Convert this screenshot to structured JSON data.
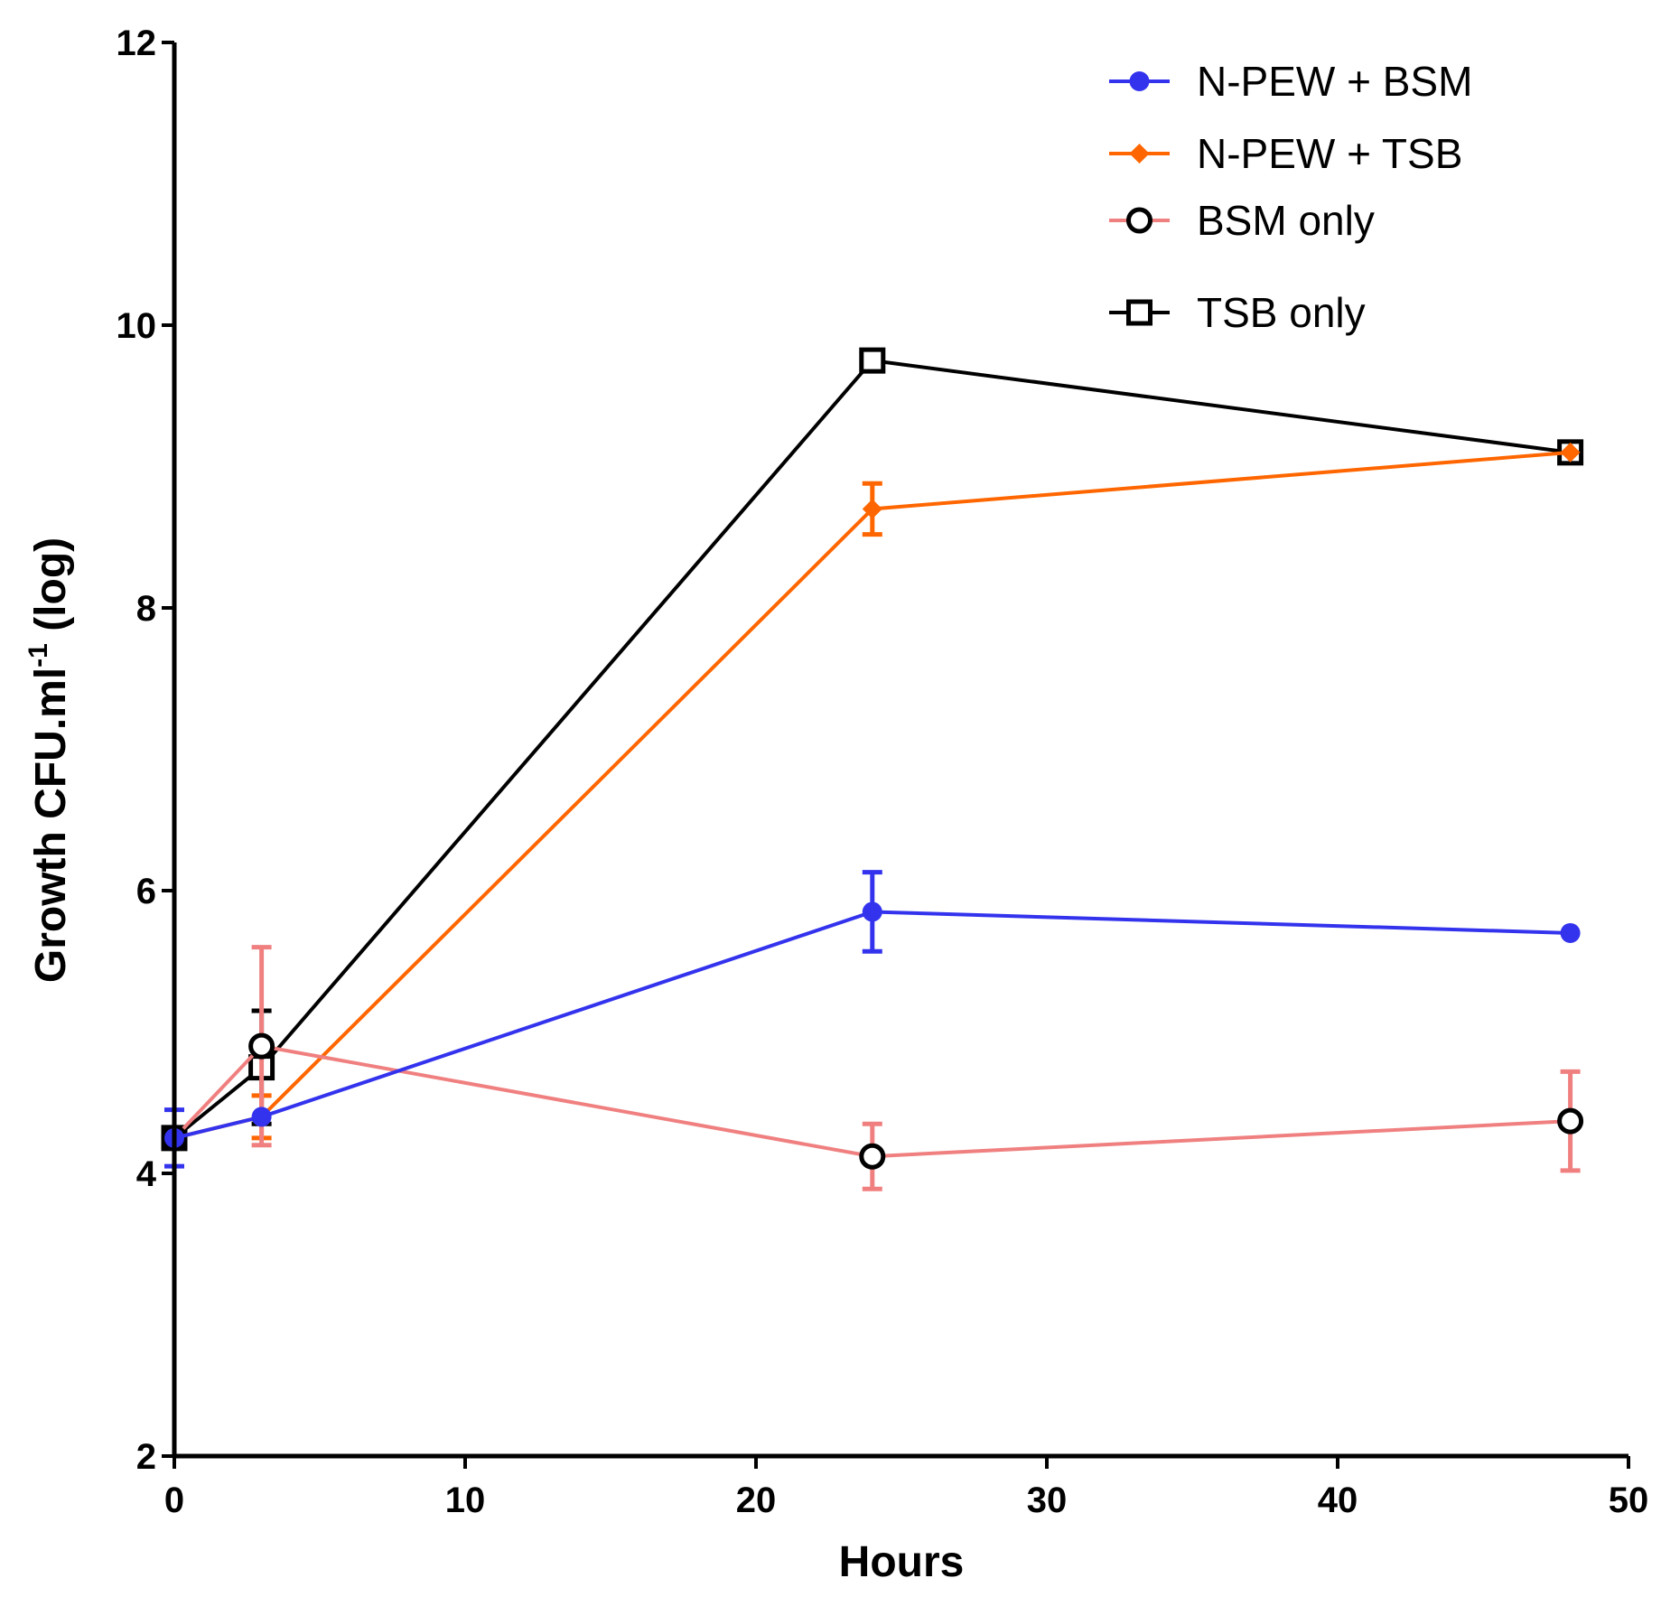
{
  "chart_data": {
    "type": "line",
    "title": "",
    "xlabel": "Hours",
    "ylabel": {
      "main": "Growth CFU.ml",
      "superscript": "-1",
      "suffix": " (log)"
    },
    "xlim": [
      0,
      50
    ],
    "ylim": [
      2,
      12
    ],
    "x_ticks": [
      0,
      10,
      20,
      30,
      40,
      50
    ],
    "y_ticks": [
      2,
      4,
      6,
      8,
      10,
      12
    ],
    "grid": false,
    "legend_position": "top-right",
    "series": [
      {
        "name": "TSB only",
        "color": "#000000",
        "marker": "square-open",
        "x": [
          0,
          3,
          24,
          48
        ],
        "y": [
          4.25,
          4.75,
          9.75,
          9.1
        ],
        "err": [
          0.0,
          0.4,
          0.0,
          0.0
        ]
      },
      {
        "name": "N-PEW + TSB",
        "color": "#ff6600",
        "marker": "diamond",
        "x": [
          0,
          3,
          24,
          48
        ],
        "y": [
          4.25,
          4.4,
          8.7,
          9.1
        ],
        "err": [
          0.0,
          0.15,
          0.18,
          0.0
        ]
      },
      {
        "name": "BSM only",
        "color": "#f08080",
        "marker": "circle-open",
        "x": [
          0,
          3,
          24,
          48
        ],
        "y": [
          4.25,
          4.9,
          4.12,
          4.37
        ],
        "err": [
          0.0,
          0.7,
          0.23,
          0.35
        ]
      },
      {
        "name": "N-PEW + BSM",
        "color": "#3333ee",
        "marker": "circle",
        "x": [
          0,
          3,
          24,
          48
        ],
        "y": [
          4.25,
          4.4,
          5.85,
          5.7
        ],
        "err": [
          0.2,
          0.0,
          0.28,
          0.0
        ]
      }
    ],
    "legend_order": [
      "N-PEW + BSM",
      "N-PEW + TSB",
      "BSM only",
      "TSB only"
    ]
  }
}
